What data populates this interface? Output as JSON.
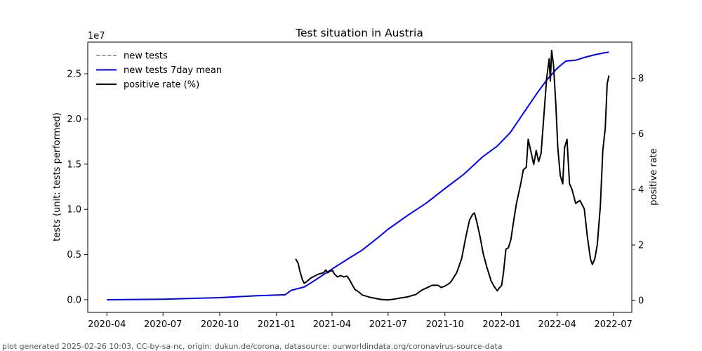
{
  "chart_data": {
    "type": "line",
    "title": "Test situation in Austria",
    "offset_text": "1e7",
    "ylabel_left": "tests (unit: tests performed)",
    "ylabel_right": "positive rate",
    "x_ticks": [
      "2020-04",
      "2020-07",
      "2020-10",
      "2021-01",
      "2021-04",
      "2021-07",
      "2021-10",
      "2022-01",
      "2022-04",
      "2022-07"
    ],
    "x_range": [
      "2020-03-01",
      "2022-07-31"
    ],
    "y_left_ticks": [
      "0.0",
      "0.5",
      "1.0",
      "1.5",
      "2.0",
      "2.5"
    ],
    "y_left_range": [
      -1400000,
      28500000
    ],
    "y_right_ticks": [
      "0",
      "2",
      "4",
      "6",
      "8"
    ],
    "y_right_range": [
      -0.426,
      9.3
    ],
    "grid": false,
    "legend_position": "top-left",
    "legend": [
      {
        "label": "new tests",
        "color": "#808080",
        "style": "dashed"
      },
      {
        "label": "new tests 7day mean",
        "color": "#0000ff",
        "style": "solid"
      },
      {
        "label": "positive rate (%)",
        "color": "#000000",
        "style": "solid"
      }
    ],
    "series": [
      {
        "name": "new tests 7day mean",
        "axis": "left",
        "color": "#0000ff",
        "points": [
          [
            "2020-04-01",
            0
          ],
          [
            "2020-07-01",
            60000
          ],
          [
            "2020-10-01",
            230000
          ],
          [
            "2020-12-01",
            450000
          ],
          [
            "2021-01-15",
            550000
          ],
          [
            "2021-01-25",
            1050000
          ],
          [
            "2021-02-15",
            1400000
          ],
          [
            "2021-03-01",
            2000000
          ],
          [
            "2021-04-01",
            3400000
          ],
          [
            "2021-05-01",
            4700000
          ],
          [
            "2021-05-20",
            5500000
          ],
          [
            "2021-06-15",
            6900000
          ],
          [
            "2021-07-01",
            7800000
          ],
          [
            "2021-08-01",
            9300000
          ],
          [
            "2021-09-01",
            10700000
          ],
          [
            "2021-10-01",
            12300000
          ],
          [
            "2021-11-01",
            13900000
          ],
          [
            "2021-12-01",
            15800000
          ],
          [
            "2021-12-25",
            17000000
          ],
          [
            "2022-01-15",
            18500000
          ],
          [
            "2022-02-01",
            20200000
          ],
          [
            "2022-02-15",
            21600000
          ],
          [
            "2022-03-01",
            23000000
          ],
          [
            "2022-03-15",
            24300000
          ],
          [
            "2022-04-01",
            25600000
          ],
          [
            "2022-04-15",
            26400000
          ],
          [
            "2022-05-01",
            26500000
          ],
          [
            "2022-05-15",
            26800000
          ],
          [
            "2022-06-01",
            27100000
          ],
          [
            "2022-06-15",
            27300000
          ],
          [
            "2022-06-24",
            27400000
          ]
        ]
      },
      {
        "name": "positive rate (%)",
        "axis": "right",
        "color": "#000000",
        "points": [
          [
            "2021-02-01",
            1.5
          ],
          [
            "2021-02-05",
            1.35
          ],
          [
            "2021-02-08",
            1.05
          ],
          [
            "2021-02-12",
            0.75
          ],
          [
            "2021-02-15",
            0.62
          ],
          [
            "2021-02-20",
            0.7
          ],
          [
            "2021-02-25",
            0.8
          ],
          [
            "2021-03-01",
            0.85
          ],
          [
            "2021-03-10",
            0.95
          ],
          [
            "2021-03-18",
            1.0
          ],
          [
            "2021-03-22",
            1.1
          ],
          [
            "2021-03-25",
            1.0
          ],
          [
            "2021-03-28",
            1.05
          ],
          [
            "2021-04-02",
            1.08
          ],
          [
            "2021-04-05",
            0.95
          ],
          [
            "2021-04-10",
            0.85
          ],
          [
            "2021-04-15",
            0.9
          ],
          [
            "2021-04-20",
            0.85
          ],
          [
            "2021-04-25",
            0.88
          ],
          [
            "2021-04-28",
            0.8
          ],
          [
            "2021-05-03",
            0.6
          ],
          [
            "2021-05-08",
            0.4
          ],
          [
            "2021-05-15",
            0.3
          ],
          [
            "2021-05-20",
            0.2
          ],
          [
            "2021-06-01",
            0.12
          ],
          [
            "2021-06-10",
            0.08
          ],
          [
            "2021-06-20",
            0.04
          ],
          [
            "2021-07-01",
            0.02
          ],
          [
            "2021-07-10",
            0.05
          ],
          [
            "2021-07-20",
            0.09
          ],
          [
            "2021-08-01",
            0.13
          ],
          [
            "2021-08-15",
            0.22
          ],
          [
            "2021-08-25",
            0.38
          ],
          [
            "2021-09-01",
            0.45
          ],
          [
            "2021-09-10",
            0.55
          ],
          [
            "2021-09-20",
            0.55
          ],
          [
            "2021-09-25",
            0.47
          ],
          [
            "2021-10-01",
            0.52
          ],
          [
            "2021-10-10",
            0.65
          ],
          [
            "2021-10-20",
            1.0
          ],
          [
            "2021-10-28",
            1.5
          ],
          [
            "2021-11-05",
            2.4
          ],
          [
            "2021-11-10",
            2.9
          ],
          [
            "2021-11-15",
            3.1
          ],
          [
            "2021-11-18",
            3.15
          ],
          [
            "2021-11-22",
            2.8
          ],
          [
            "2021-11-27",
            2.3
          ],
          [
            "2021-12-02",
            1.7
          ],
          [
            "2021-12-08",
            1.2
          ],
          [
            "2021-12-15",
            0.7
          ],
          [
            "2021-12-20",
            0.5
          ],
          [
            "2021-12-25",
            0.35
          ],
          [
            "2021-12-28",
            0.45
          ],
          [
            "2022-01-01",
            0.55
          ],
          [
            "2022-01-04",
            1.0
          ],
          [
            "2022-01-08",
            1.85
          ],
          [
            "2022-01-12",
            1.9
          ],
          [
            "2022-01-16",
            2.2
          ],
          [
            "2022-01-20",
            2.8
          ],
          [
            "2022-01-25",
            3.5
          ],
          [
            "2022-02-01",
            4.2
          ],
          [
            "2022-02-05",
            4.7
          ],
          [
            "2022-02-10",
            4.8
          ],
          [
            "2022-02-13",
            5.8
          ],
          [
            "2022-02-18",
            5.3
          ],
          [
            "2022-02-22",
            4.9
          ],
          [
            "2022-02-26",
            5.4
          ],
          [
            "2022-03-02",
            5.0
          ],
          [
            "2022-03-06",
            5.3
          ],
          [
            "2022-03-10",
            6.5
          ],
          [
            "2022-03-15",
            8.0
          ],
          [
            "2022-03-19",
            8.7
          ],
          [
            "2022-03-21",
            7.9
          ],
          [
            "2022-03-23",
            9.0
          ],
          [
            "2022-03-26",
            8.5
          ],
          [
            "2022-03-30",
            7.0
          ],
          [
            "2022-04-02",
            5.5
          ],
          [
            "2022-04-06",
            4.5
          ],
          [
            "2022-04-10",
            4.2
          ],
          [
            "2022-04-13",
            5.5
          ],
          [
            "2022-04-17",
            5.8
          ],
          [
            "2022-04-21",
            4.2
          ],
          [
            "2022-04-25",
            4.0
          ],
          [
            "2022-05-01",
            3.5
          ],
          [
            "2022-05-08",
            3.6
          ],
          [
            "2022-05-15",
            3.3
          ],
          [
            "2022-05-20",
            2.3
          ],
          [
            "2022-05-25",
            1.5
          ],
          [
            "2022-05-28",
            1.3
          ],
          [
            "2022-06-01",
            1.5
          ],
          [
            "2022-06-05",
            2.0
          ],
          [
            "2022-06-10",
            3.4
          ],
          [
            "2022-06-14",
            5.4
          ],
          [
            "2022-06-18",
            6.2
          ],
          [
            "2022-06-21",
            7.8
          ],
          [
            "2022-06-24",
            8.1
          ]
        ]
      }
    ]
  },
  "footer": "plot generated 2025-02-26 10:03, CC-by-sa-nc, origin: dukun.de/corona, datasource: ourworldindata.org/coronavirus-source-data"
}
